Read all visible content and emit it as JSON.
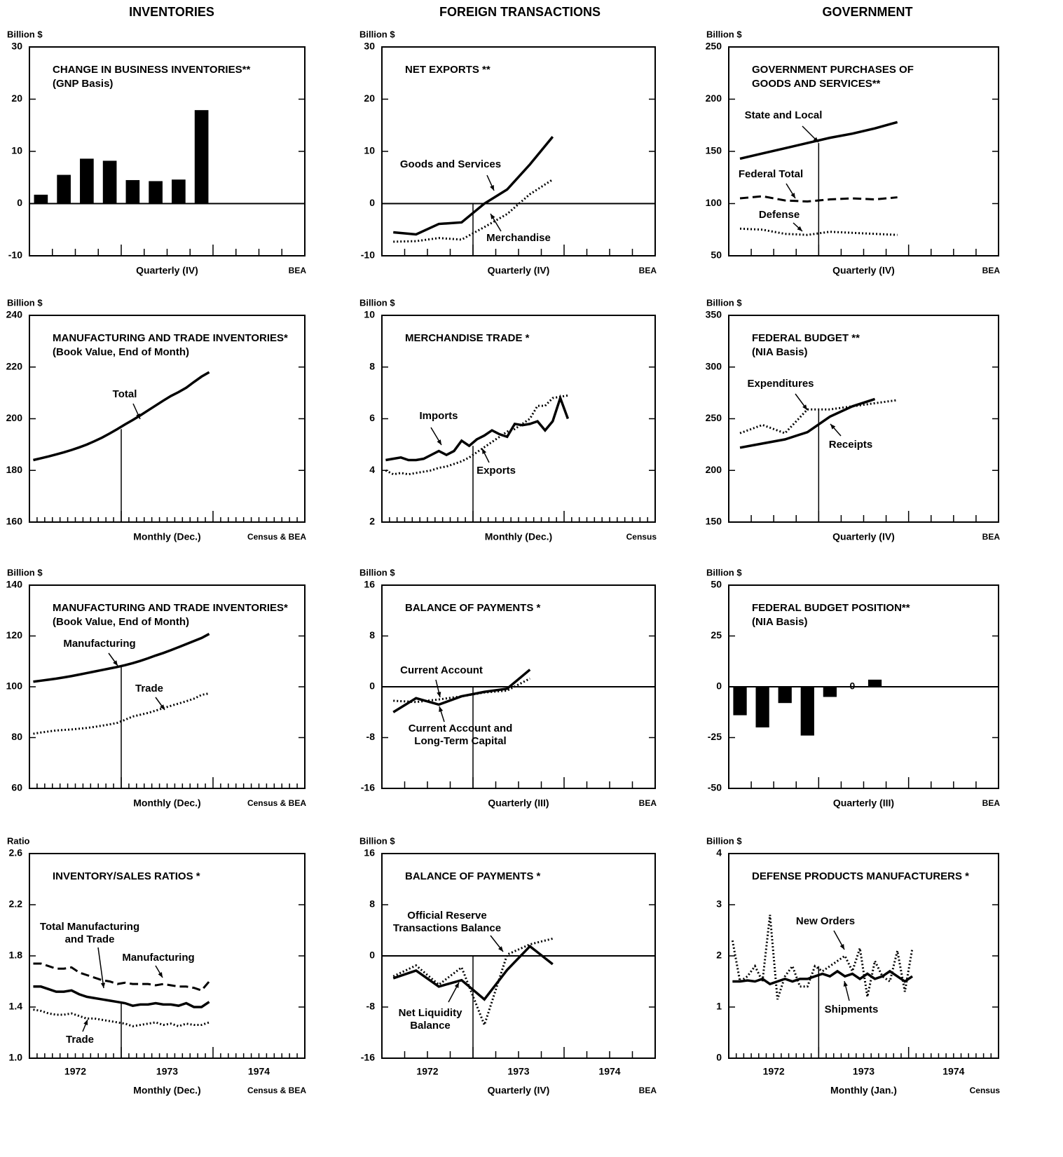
{
  "column_titles": [
    "INVENTORIES",
    "FOREIGN TRANSACTIONS",
    "GOVERNMENT"
  ],
  "chart_data": [
    {
      "type": "bar",
      "title": "CHANGE IN BUSINESS INVENTORIES**",
      "subtitle": "(GNP Basis)",
      "y_unit": "Billion $",
      "xlabel": "Quarterly (IV)",
      "source": "BEA",
      "values": [
        1.7,
        5.5,
        8.6,
        8.2,
        4.5,
        4.3,
        4.6,
        17.9
      ],
      "color": "#000000",
      "ylim": [
        -10,
        30
      ],
      "yticks": [
        -10,
        0,
        10,
        20,
        30
      ]
    },
    {
      "type": "line",
      "title": "NET EXPORTS **",
      "y_unit": "Billion $",
      "xlabel": "Quarterly (IV)",
      "source": "BEA",
      "ylim": [
        -10,
        30
      ],
      "yticks": [
        -10,
        0,
        10,
        20,
        30
      ],
      "series": [
        {
          "name": "Goods and Services",
          "color": "#000000",
          "style": "solid",
          "values": [
            -5.5,
            -5.9,
            -3.9,
            -3.6,
            0,
            2.7,
            7.5,
            12.8
          ]
        },
        {
          "name": "Merchandise",
          "color": "#000000",
          "style": "dotted",
          "values": [
            -7.3,
            -7.2,
            -6.6,
            -6.9,
            -4.5,
            -2,
            1.8,
            4.6
          ]
        }
      ]
    },
    {
      "type": "line",
      "title": "GOVERNMENT PURCHASES OF",
      "subtitle": "GOODS AND SERVICES**",
      "y_unit": "Billion $",
      "xlabel": "Quarterly (IV)",
      "source": "BEA",
      "ylim": [
        50,
        250
      ],
      "yticks": [
        50,
        100,
        150,
        200,
        250
      ],
      "series": [
        {
          "name": "State and Local",
          "color": "#000000",
          "style": "solid",
          "values": [
            143,
            148,
            153,
            158,
            163,
            167,
            172,
            178
          ]
        },
        {
          "name": "Federal Total",
          "color": "#000000",
          "style": "dashed",
          "values": [
            105,
            107,
            103,
            102,
            104,
            105,
            104,
            106
          ]
        },
        {
          "name": "Defense",
          "color": "#000000",
          "style": "dotted",
          "values": [
            76,
            75,
            71,
            70,
            73,
            72,
            71,
            70
          ]
        }
      ]
    },
    {
      "type": "line",
      "title": "MANUFACTURING AND TRADE INVENTORIES*",
      "subtitle": "(Book Value, End of Month)",
      "y_unit": "Billion $",
      "xlabel": "Monthly  (Dec.)",
      "source": "Census & BEA",
      "ylim": [
        160,
        240
      ],
      "yticks": [
        160,
        180,
        200,
        220,
        240
      ],
      "series": [
        {
          "name": "Total",
          "color": "#000000",
          "style": "solid",
          "values": [
            184,
            184.7,
            185.4,
            186.2,
            187,
            187.9,
            188.9,
            190,
            191.3,
            192.7,
            194.3,
            196,
            197.8,
            199.5,
            201.3,
            203.2,
            205.1,
            207,
            208.8,
            210.3,
            212,
            214.2,
            216.3,
            218
          ]
        }
      ]
    },
    {
      "type": "line",
      "title": "MERCHANDISE TRADE *",
      "y_unit": "Billion $",
      "xlabel": "Monthly (Dec.)",
      "source": "Census",
      "ylim": [
        2,
        10
      ],
      "yticks": [
        2,
        4,
        6,
        8,
        10
      ],
      "series": [
        {
          "name": "Imports",
          "color": "#000000",
          "style": "solid",
          "values": [
            4.4,
            4.45,
            4.5,
            4.4,
            4.4,
            4.45,
            4.6,
            4.75,
            4.6,
            4.75,
            5.15,
            4.95,
            5.2,
            5.35,
            5.55,
            5.4,
            5.3,
            5.8,
            5.75,
            5.8,
            5.9,
            5.55,
            5.9,
            6.8,
            6.0
          ]
        },
        {
          "name": "Exports",
          "color": "#000000",
          "style": "dotted",
          "values": [
            4.0,
            3.85,
            3.9,
            3.85,
            3.9,
            3.95,
            4.0,
            4.1,
            4.15,
            4.25,
            4.35,
            4.5,
            4.7,
            4.9,
            5.1,
            5.3,
            5.5,
            5.6,
            5.8,
            6.0,
            6.5,
            6.5,
            6.8,
            6.85,
            6.9
          ]
        }
      ]
    },
    {
      "type": "line",
      "title": "FEDERAL BUDGET **",
      "subtitle": "(NIA Basis)",
      "y_unit": "Billion $",
      "xlabel": "Quarterly (IV)",
      "source": "BEA",
      "ylim": [
        150,
        350
      ],
      "yticks": [
        150,
        200,
        250,
        300,
        350
      ],
      "series": [
        {
          "name": "Expenditures",
          "color": "#000000",
          "style": "dotted",
          "values": [
            236,
            244,
            236,
            259,
            259,
            262,
            265,
            268
          ]
        },
        {
          "name": "Receipts",
          "color": "#000000",
          "style": "solid",
          "values": [
            222,
            226,
            230,
            237,
            252,
            262,
            269
          ]
        }
      ]
    },
    {
      "type": "line",
      "title": "MANUFACTURING AND TRADE INVENTORIES*",
      "subtitle": "(Book Value, End of Month)",
      "y_unit": "Billion $",
      "xlabel": "Monthly (Dec.)",
      "source": "Census & BEA",
      "ylim": [
        60,
        140
      ],
      "yticks": [
        60,
        80,
        100,
        120,
        140
      ],
      "series": [
        {
          "name": "Manufacturing",
          "color": "#000000",
          "style": "solid",
          "values": [
            102,
            102.4,
            102.8,
            103.2,
            103.7,
            104.2,
            104.8,
            105.4,
            106,
            106.6,
            107.2,
            107.8,
            108.5,
            109.3,
            110.2,
            111.2,
            112.3,
            113.3,
            114.4,
            115.6,
            116.8,
            118,
            119.2,
            120.8
          ]
        },
        {
          "name": "Trade",
          "color": "#000000",
          "style": "dotted",
          "values": [
            81.5,
            82,
            82.4,
            82.8,
            83,
            83.2,
            83.5,
            83.8,
            84.2,
            84.7,
            85.2,
            85.8,
            87,
            88.3,
            89,
            89.7,
            90.6,
            91.6,
            92.5,
            93.4,
            94.3,
            95.3,
            96.8,
            97.4
          ]
        }
      ]
    },
    {
      "type": "line",
      "title": "BALANCE OF PAYMENTS *",
      "y_unit": "Billion $",
      "xlabel": "Quarterly (III)",
      "source": "BEA",
      "ylim": [
        -16,
        16
      ],
      "yticks": [
        -16,
        -8,
        0,
        8,
        16
      ],
      "series": [
        {
          "name": "Current Account",
          "color": "#000000",
          "style": "solid",
          "values": [
            -4,
            -1.8,
            -2.8,
            -1.5,
            -0.8,
            -0.3,
            2.7
          ]
        },
        {
          "name": "Current Account and Long-Term Capital",
          "color": "#000000",
          "style": "dotted",
          "values": [
            -2.2,
            -2.4,
            -2.0,
            -1.5,
            -0.9,
            -0.6,
            1.3
          ]
        }
      ]
    },
    {
      "type": "bar",
      "title": "FEDERAL BUDGET POSITION**",
      "subtitle": "(NIA Basis)",
      "y_unit": "Billion $",
      "xlabel": "Quarterly (III)",
      "source": "BEA",
      "values": [
        -14,
        -20,
        -8,
        -24,
        -5,
        0,
        3.5
      ],
      "color": "#000000",
      "ylim": [
        -50,
        50
      ],
      "yticks": [
        -50,
        -25,
        0,
        25,
        50
      ]
    },
    {
      "type": "line",
      "title": "INVENTORY/SALES RATIOS *",
      "y_unit": "Ratio",
      "year_labels": [
        "1972",
        "1973",
        "1974"
      ],
      "xlabel": "Monthly (Dec.)",
      "source": "Census & BEA",
      "ylim": [
        1,
        2.6
      ],
      "yticks": [
        {
          "value": 1,
          "label": "1.0"
        },
        1.4,
        1.8,
        2.2,
        2.6
      ],
      "series": [
        {
          "name": "Total Manufacturing and Trade",
          "color": "#000000",
          "style": "solid",
          "values": [
            1.56,
            1.56,
            1.54,
            1.52,
            1.52,
            1.53,
            1.5,
            1.48,
            1.47,
            1.46,
            1.45,
            1.44,
            1.43,
            1.41,
            1.42,
            1.42,
            1.43,
            1.42,
            1.42,
            1.41,
            1.43,
            1.4,
            1.4,
            1.44
          ]
        },
        {
          "name": "Manufacturing",
          "color": "#000000",
          "style": "dashed",
          "values": [
            1.74,
            1.74,
            1.72,
            1.7,
            1.7,
            1.71,
            1.67,
            1.65,
            1.63,
            1.61,
            1.6,
            1.58,
            1.59,
            1.58,
            1.58,
            1.58,
            1.57,
            1.58,
            1.57,
            1.56,
            1.56,
            1.55,
            1.53,
            1.6
          ]
        },
        {
          "name": "Trade",
          "color": "#000000",
          "style": "dotted",
          "values": [
            1.38,
            1.37,
            1.35,
            1.34,
            1.34,
            1.35,
            1.33,
            1.31,
            1.31,
            1.3,
            1.29,
            1.28,
            1.27,
            1.25,
            1.26,
            1.27,
            1.28,
            1.26,
            1.27,
            1.25,
            1.27,
            1.26,
            1.26,
            1.28
          ]
        }
      ]
    },
    {
      "type": "line",
      "title": "BALANCE OF PAYMENTS *",
      "y_unit": "Billion $",
      "year_labels": [
        "1972",
        "1973",
        "1974"
      ],
      "xlabel": "Quarterly (IV)",
      "source": "BEA",
      "ylim": [
        -16,
        16
      ],
      "yticks": [
        -16,
        -8,
        0,
        8,
        16
      ],
      "series": [
        {
          "name": "Official Reserve Transactions Balance",
          "color": "#000000",
          "style": "dotted",
          "values": [
            -3.2,
            -1.5,
            -4.5,
            -1.8,
            -10.8,
            0.2,
            1.8,
            2.7
          ]
        },
        {
          "name": "Net Liquidity Balance",
          "color": "#000000",
          "style": "solid",
          "values": [
            -3.5,
            -2.3,
            -4.8,
            -3.8,
            -6.8,
            -2.2,
            1.5,
            -1.3
          ]
        }
      ]
    },
    {
      "type": "line",
      "title": "DEFENSE PRODUCTS MANUFACTURERS *",
      "y_unit": "Billion $",
      "year_labels": [
        "1972",
        "1973",
        "1974"
      ],
      "xlabel": "Monthly (Jan.)",
      "source": "Census",
      "ylim": [
        0,
        4
      ],
      "yticks": [
        0,
        1,
        2,
        3,
        4
      ],
      "series": [
        {
          "name": "New Orders",
          "color": "#000000",
          "style": "dotted",
          "values": [
            2.3,
            1.5,
            1.6,
            1.8,
            1.5,
            2.8,
            1.15,
            1.6,
            1.8,
            1.4,
            1.4,
            1.8,
            1.7,
            1.8,
            1.9,
            2.0,
            1.7,
            2.15,
            1.2,
            1.9,
            1.6,
            1.5,
            2.1,
            1.3,
            2.15
          ]
        },
        {
          "name": "Shipments",
          "color": "#000000",
          "style": "solid",
          "values": [
            1.5,
            1.5,
            1.52,
            1.5,
            1.55,
            1.45,
            1.5,
            1.55,
            1.5,
            1.55,
            1.55,
            1.6,
            1.65,
            1.6,
            1.7,
            1.6,
            1.65,
            1.55,
            1.65,
            1.55,
            1.6,
            1.7,
            1.6,
            1.5,
            1.6
          ]
        }
      ]
    }
  ]
}
